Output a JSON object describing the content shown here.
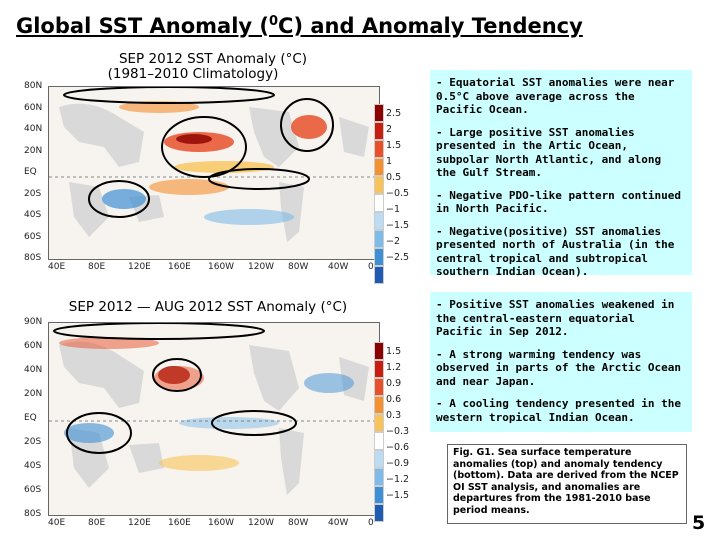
{
  "title_main": "Global SST Anomaly (",
  "title_sup": "0",
  "title_rest": "C) and Anomaly Tendency",
  "map_top": {
    "title_line1": "SEP 2012 SST Anomaly (°C)",
    "title_line2": "(1981–2010 Climatology)",
    "lat_labels": [
      "80N",
      "60N",
      "40N",
      "20N",
      "EQ",
      "20S",
      "40S",
      "60S",
      "80S"
    ],
    "lon_labels": [
      "40E",
      "80E",
      "120E",
      "160E",
      "160W",
      "120W",
      "80W",
      "40W",
      "0"
    ],
    "colorbar_labels": [
      "2.5",
      "2",
      "1.5",
      "1",
      "0.5",
      "−0.5",
      "−1",
      "−1.5",
      "−2",
      "−2.5"
    ],
    "colorbar_colors": [
      "#8b0000",
      "#c81e10",
      "#e8502a",
      "#f3902f",
      "#f8c45a",
      "#ffffff",
      "#bcdcf3",
      "#7fbbe8",
      "#3e8fd4",
      "#1f5ab3"
    ]
  },
  "map_bottom": {
    "title": "SEP 2012 — AUG 2012 SST Anomaly (°C)",
    "lat_labels": [
      "90N",
      "60N",
      "40N",
      "20N",
      "EQ",
      "20S",
      "40S",
      "60S",
      "80S"
    ],
    "lon_labels": [
      "40E",
      "80E",
      "120E",
      "160E",
      "160W",
      "120W",
      "80W",
      "40W",
      "0"
    ],
    "colorbar_labels": [
      "1.5",
      "1.2",
      "0.9",
      "0.6",
      "0.3",
      "−0.3",
      "−0.6",
      "−0.9",
      "−1.2",
      "−1.5"
    ],
    "colorbar_colors": [
      "#8b0000",
      "#c81e10",
      "#e8502a",
      "#f3902f",
      "#f8c45a",
      "#ffffff",
      "#bcdcf3",
      "#7fbbe8",
      "#3e8fd4",
      "#1f5ab3"
    ]
  },
  "panel_top": [
    "- Equatorial SST anomalies were near 0.5°C above average across the Pacific Ocean.",
    "- Large positive SST anomalies presented in the Artic Ocean, subpolar North Atlantic, and along the Gulf Stream.",
    "- Negative PDO-like pattern continued in North Pacific.",
    "- Negative(positive) SST anomalies presented north of Australia (in the central tropical and subtropical southern Indian Ocean)."
  ],
  "panel_bottom": [
    "- Positive SST anomalies weakened in the central-eastern equatorial Pacific in Sep 2012.",
    "- A strong warming tendency was observed in parts of the Arctic Ocean and near Japan.",
    "- A cooling tendency presented in the western tropical Indian Ocean."
  ],
  "caption": "Fig. G1. Sea surface temperature anomalies (top) and anomaly tendency (bottom). Data are derived from the NCEP OI SST analysis, and anomalies are departures from the 1981-2010 base period means.",
  "page_number": "5"
}
